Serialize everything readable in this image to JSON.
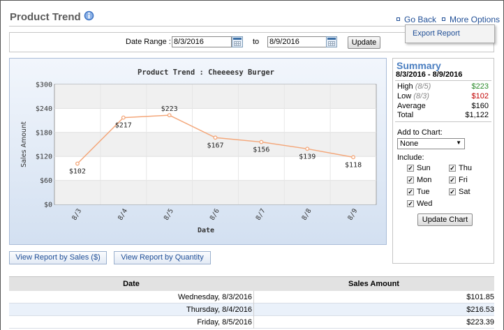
{
  "header": {
    "title": "Product Trend",
    "links": {
      "go_back": "Go Back",
      "more_options": "More Options"
    },
    "menu": {
      "export": "Export Report"
    }
  },
  "date_bar": {
    "range_label": "Date Range :",
    "start": "8/3/2016",
    "to_label": "to",
    "end": "8/9/2016",
    "update_label": "Update"
  },
  "chart_data": {
    "type": "line",
    "title": "Product Trend : Cheeeesy Burger",
    "xlabel": "Date",
    "ylabel": "Sales Amount",
    "categories": [
      "8/3",
      "8/4",
      "8/5",
      "8/6",
      "8/7",
      "8/8",
      "8/9"
    ],
    "values": [
      102,
      217,
      223,
      167,
      156,
      139,
      118
    ],
    "data_labels": [
      "$102",
      "$217",
      "$223",
      "$167",
      "$156",
      "$139",
      "$118"
    ],
    "y_ticks": [
      "$0",
      "$60",
      "$120",
      "$180",
      "$240",
      "$300"
    ],
    "ylim": [
      0,
      300
    ],
    "grid": true,
    "line_color": "#f4a77a"
  },
  "view_buttons": {
    "by_sales": "View Report by Sales ($)",
    "by_quantity": "View Report by Quantity"
  },
  "summary": {
    "title": "Summary",
    "range": "8/3/2016 - 8/9/2016",
    "high": {
      "label": "High",
      "date": "(8/5)",
      "value": "$223"
    },
    "low": {
      "label": "Low",
      "date": "(8/3)",
      "value": "$102"
    },
    "average": {
      "label": "Average",
      "value": "$160"
    },
    "total": {
      "label": "Total",
      "value": "$1,122"
    },
    "add_to_chart_label": "Add to Chart:",
    "add_to_chart_value": "None",
    "include_label": "Include:",
    "days": {
      "sun": "Sun",
      "mon": "Mon",
      "tue": "Tue",
      "wed": "Wed",
      "thu": "Thu",
      "fri": "Fri",
      "sat": "Sat"
    },
    "update_chart_label": "Update Chart",
    "colors": {
      "high": "#2a8a2a",
      "low": "#c00000",
      "title": "#4a7ec0"
    }
  },
  "table": {
    "headers": {
      "date": "Date",
      "amount": "Sales Amount"
    },
    "rows": [
      {
        "date": "Wednesday, 8/3/2016",
        "amount": "$101.85"
      },
      {
        "date": "Thursday, 8/4/2016",
        "amount": "$216.53"
      },
      {
        "date": "Friday, 8/5/2016",
        "amount": "$223.39"
      }
    ]
  }
}
